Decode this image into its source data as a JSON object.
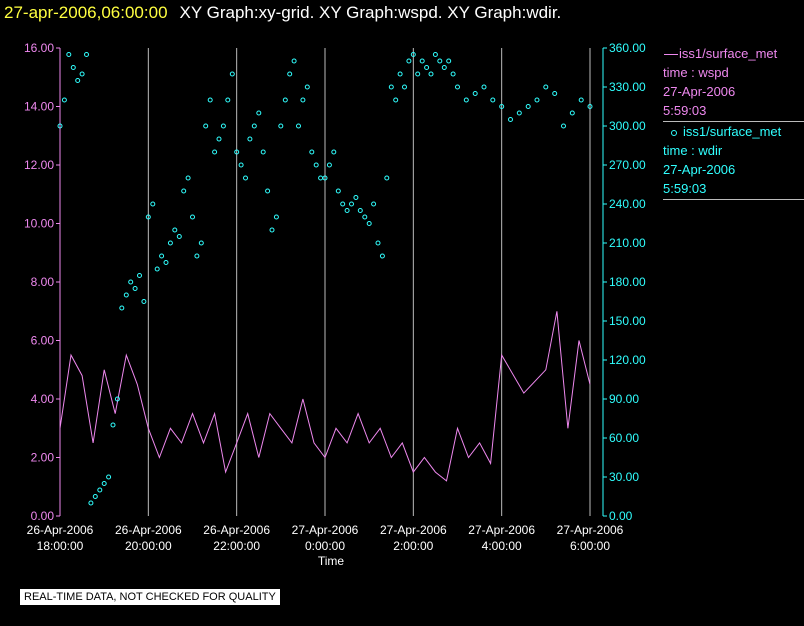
{
  "header": {
    "date": "27-apr-2006,06:00:00",
    "graphs": "XY Graph:xy-grid.  XY Graph:wspd.  XY Graph:wdir."
  },
  "legend": {
    "series1": {
      "name": "iss1/surface_met",
      "line2": "time : wspd",
      "line3": "27-Apr-2006",
      "line4": "5:59:03"
    },
    "series2": {
      "name": "iss1/surface_met",
      "line2": "time : wdir",
      "line3": "27-Apr-2006",
      "line4": "5:59:03"
    }
  },
  "footer": {
    "note": "REAL-TIME DATA, NOT CHECKED FOR QUALITY"
  },
  "colors": {
    "background": "#000000",
    "wspd": "#ee88ee",
    "wdir": "#30ffff",
    "grid": "#bbbbbb",
    "title_date": "#ffff40"
  },
  "chart_data": {
    "type": "line+scatter",
    "xlabel": "Time",
    "x_tick_labels": [
      [
        "26-Apr-2006",
        "18:00:00"
      ],
      [
        "26-Apr-2006",
        "20:00:00"
      ],
      [
        "26-Apr-2006",
        "22:00:00"
      ],
      [
        "27-Apr-2006",
        "0:00:00"
      ],
      [
        "27-Apr-2006",
        "2:00:00"
      ],
      [
        "27-Apr-2006",
        "4:00:00"
      ],
      [
        "27-Apr-2006",
        "6:00:00"
      ]
    ],
    "x_range_hours": [
      0,
      12
    ],
    "left_axis": {
      "series": "wspd",
      "ylim": [
        0,
        16
      ],
      "ticks": [
        "0.00",
        "2.00",
        "4.00",
        "6.00",
        "8.00",
        "10.00",
        "12.00",
        "14.00",
        "16.00"
      ]
    },
    "right_axis": {
      "series": "wdir",
      "ylim": [
        0,
        360
      ],
      "ticks": [
        "0.00",
        "30.00",
        "60.00",
        "90.00",
        "120.00",
        "150.00",
        "180.00",
        "210.00",
        "240.00",
        "270.00",
        "300.00",
        "330.00",
        "360.00"
      ]
    },
    "grid": "vertical lines at x ticks",
    "series": [
      {
        "name": "wspd",
        "style": "line",
        "x_hours": [
          0.0,
          0.25,
          0.5,
          0.75,
          1.0,
          1.25,
          1.5,
          1.75,
          2.0,
          2.25,
          2.5,
          2.75,
          3.0,
          3.25,
          3.5,
          3.75,
          4.0,
          4.25,
          4.5,
          4.75,
          5.0,
          5.25,
          5.5,
          5.75,
          6.0,
          6.25,
          6.5,
          6.75,
          7.0,
          7.25,
          7.5,
          7.75,
          8.0,
          8.25,
          8.5,
          8.75,
          9.0,
          9.25,
          9.5,
          9.75,
          10.0,
          10.5,
          11.0,
          11.25,
          11.5,
          11.75,
          12.0
        ],
        "values": [
          3.0,
          5.5,
          4.8,
          2.5,
          5.0,
          3.5,
          5.5,
          4.5,
          3.0,
          2.0,
          3.0,
          2.5,
          3.5,
          2.5,
          3.5,
          1.5,
          2.5,
          3.5,
          2.0,
          3.5,
          3.0,
          2.5,
          4.0,
          2.5,
          2.0,
          3.0,
          2.5,
          3.5,
          2.5,
          3.0,
          2.0,
          2.5,
          1.5,
          2.0,
          1.5,
          1.2,
          3.0,
          2.0,
          2.5,
          1.8,
          5.5,
          4.2,
          5.0,
          7.0,
          3.0,
          6.0,
          4.5
        ]
      },
      {
        "name": "wdir",
        "style": "scatter",
        "x_hours": [
          0.0,
          0.1,
          0.2,
          0.3,
          0.4,
          0.5,
          0.6,
          0.7,
          0.8,
          0.9,
          1.0,
          1.1,
          1.2,
          1.3,
          1.4,
          1.5,
          1.6,
          1.7,
          1.8,
          1.9,
          2.0,
          2.1,
          2.2,
          2.3,
          2.4,
          2.5,
          2.6,
          2.7,
          2.8,
          2.9,
          3.0,
          3.1,
          3.2,
          3.3,
          3.4,
          3.5,
          3.6,
          3.7,
          3.8,
          3.9,
          4.0,
          4.1,
          4.2,
          4.3,
          4.4,
          4.5,
          4.6,
          4.7,
          4.8,
          4.9,
          5.0,
          5.1,
          5.2,
          5.3,
          5.4,
          5.5,
          5.6,
          5.7,
          5.8,
          5.9,
          6.0,
          6.1,
          6.2,
          6.3,
          6.4,
          6.5,
          6.6,
          6.7,
          6.8,
          6.9,
          7.0,
          7.1,
          7.2,
          7.3,
          7.4,
          7.5,
          7.6,
          7.7,
          7.8,
          7.9,
          8.0,
          8.1,
          8.2,
          8.3,
          8.4,
          8.5,
          8.6,
          8.7,
          8.8,
          8.9,
          9.0,
          9.2,
          9.4,
          9.6,
          9.8,
          10.0,
          10.2,
          10.4,
          10.6,
          10.8,
          11.0,
          11.2,
          11.4,
          11.6,
          11.8,
          12.0
        ],
        "values": [
          300,
          320,
          355,
          345,
          335,
          340,
          355,
          10,
          15,
          20,
          25,
          30,
          70,
          90,
          160,
          170,
          180,
          175,
          185,
          165,
          230,
          240,
          190,
          200,
          195,
          210,
          220,
          215,
          250,
          260,
          230,
          200,
          210,
          300,
          320,
          280,
          290,
          300,
          320,
          340,
          280,
          270,
          260,
          290,
          300,
          310,
          280,
          250,
          220,
          230,
          300,
          320,
          340,
          350,
          300,
          320,
          330,
          280,
          270,
          260,
          260,
          270,
          280,
          250,
          240,
          235,
          240,
          245,
          235,
          230,
          225,
          240,
          210,
          200,
          260,
          330,
          320,
          340,
          330,
          350,
          355,
          340,
          350,
          345,
          340,
          355,
          350,
          345,
          350,
          340,
          330,
          320,
          325,
          330,
          320,
          315,
          305,
          310,
          315,
          320,
          330,
          325,
          300,
          310,
          320,
          315
        ]
      }
    ]
  }
}
